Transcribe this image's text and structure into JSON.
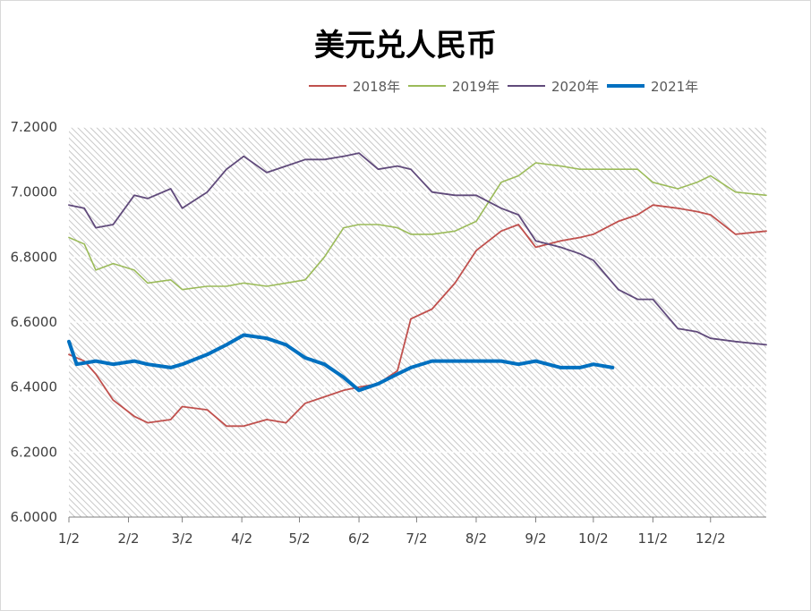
{
  "chart_data": {
    "type": "line",
    "title": "美元兑人民币",
    "xlabel": "",
    "ylabel": "",
    "ylim": [
      6.0,
      7.2
    ],
    "yticks": [
      "6.0000",
      "6.2000",
      "6.4000",
      "6.6000",
      "6.8000",
      "7.0000",
      "7.2000"
    ],
    "xticks": [
      "1/2",
      "2/2",
      "3/2",
      "4/2",
      "5/2",
      "6/2",
      "7/2",
      "8/2",
      "9/2",
      "10/2",
      "11/2",
      "12/2"
    ],
    "xrange": [
      "1/2",
      "12/31"
    ],
    "grid": true,
    "legend_position": "top-right",
    "series": [
      {
        "name": "2018年",
        "color": "#c0504d",
        "width": 1.8,
        "points": [
          [
            "1/2",
            6.5
          ],
          [
            "1/10",
            6.48
          ],
          [
            "1/16",
            6.44
          ],
          [
            "1/25",
            6.36
          ],
          [
            "2/5",
            6.31
          ],
          [
            "2/12",
            6.29
          ],
          [
            "2/24",
            6.3
          ],
          [
            "3/2",
            6.34
          ],
          [
            "3/15",
            6.33
          ],
          [
            "3/25",
            6.28
          ],
          [
            "4/3",
            6.28
          ],
          [
            "4/15",
            6.3
          ],
          [
            "4/25",
            6.29
          ],
          [
            "5/5",
            6.35
          ],
          [
            "5/15",
            6.37
          ],
          [
            "5/25",
            6.39
          ],
          [
            "6/2",
            6.4
          ],
          [
            "6/12",
            6.41
          ],
          [
            "6/22",
            6.45
          ],
          [
            "6/29",
            6.61
          ],
          [
            "7/10",
            6.64
          ],
          [
            "7/22",
            6.72
          ],
          [
            "8/2",
            6.82
          ],
          [
            "8/15",
            6.88
          ],
          [
            "8/24",
            6.9
          ],
          [
            "9/2",
            6.83
          ],
          [
            "9/15",
            6.85
          ],
          [
            "9/25",
            6.86
          ],
          [
            "10/2",
            6.87
          ],
          [
            "10/15",
            6.91
          ],
          [
            "10/25",
            6.93
          ],
          [
            "11/2",
            6.96
          ],
          [
            "11/15",
            6.95
          ],
          [
            "11/25",
            6.94
          ],
          [
            "12/2",
            6.93
          ],
          [
            "12/15",
            6.87
          ],
          [
            "12/31",
            6.88
          ]
        ]
      },
      {
        "name": "2019年",
        "color": "#9bbb59",
        "width": 1.6,
        "points": [
          [
            "1/2",
            6.86
          ],
          [
            "1/10",
            6.84
          ],
          [
            "1/16",
            6.76
          ],
          [
            "1/25",
            6.78
          ],
          [
            "2/5",
            6.76
          ],
          [
            "2/12",
            6.72
          ],
          [
            "2/24",
            6.73
          ],
          [
            "3/2",
            6.7
          ],
          [
            "3/15",
            6.71
          ],
          [
            "3/25",
            6.71
          ],
          [
            "4/3",
            6.72
          ],
          [
            "4/15",
            6.71
          ],
          [
            "4/25",
            6.72
          ],
          [
            "5/5",
            6.73
          ],
          [
            "5/15",
            6.8
          ],
          [
            "5/25",
            6.89
          ],
          [
            "6/2",
            6.9
          ],
          [
            "6/12",
            6.9
          ],
          [
            "6/22",
            6.89
          ],
          [
            "6/29",
            6.87
          ],
          [
            "7/10",
            6.87
          ],
          [
            "7/22",
            6.88
          ],
          [
            "8/2",
            6.91
          ],
          [
            "8/15",
            7.03
          ],
          [
            "8/24",
            7.05
          ],
          [
            "9/2",
            7.09
          ],
          [
            "9/15",
            7.08
          ],
          [
            "9/25",
            7.07
          ],
          [
            "10/2",
            7.07
          ],
          [
            "10/15",
            7.07
          ],
          [
            "10/25",
            7.07
          ],
          [
            "11/2",
            7.03
          ],
          [
            "11/15",
            7.01
          ],
          [
            "11/25",
            7.03
          ],
          [
            "12/2",
            7.05
          ],
          [
            "12/15",
            7.0
          ],
          [
            "12/31",
            6.99
          ]
        ]
      },
      {
        "name": "2020年",
        "color": "#604a7b",
        "width": 1.8,
        "points": [
          [
            "1/2",
            6.96
          ],
          [
            "1/10",
            6.95
          ],
          [
            "1/16",
            6.89
          ],
          [
            "1/25",
            6.9
          ],
          [
            "2/5",
            6.99
          ],
          [
            "2/12",
            6.98
          ],
          [
            "2/24",
            7.01
          ],
          [
            "3/2",
            6.95
          ],
          [
            "3/15",
            7.0
          ],
          [
            "3/25",
            7.07
          ],
          [
            "4/3",
            7.11
          ],
          [
            "4/15",
            7.06
          ],
          [
            "4/25",
            7.08
          ],
          [
            "5/5",
            7.1
          ],
          [
            "5/15",
            7.1
          ],
          [
            "5/25",
            7.11
          ],
          [
            "6/2",
            7.12
          ],
          [
            "6/12",
            7.07
          ],
          [
            "6/22",
            7.08
          ],
          [
            "6/29",
            7.07
          ],
          [
            "7/10",
            7.0
          ],
          [
            "7/22",
            6.99
          ],
          [
            "8/2",
            6.99
          ],
          [
            "8/15",
            6.95
          ],
          [
            "8/24",
            6.93
          ],
          [
            "9/2",
            6.85
          ],
          [
            "9/15",
            6.83
          ],
          [
            "9/25",
            6.81
          ],
          [
            "10/2",
            6.79
          ],
          [
            "10/15",
            6.7
          ],
          [
            "10/25",
            6.67
          ],
          [
            "11/2",
            6.67
          ],
          [
            "11/15",
            6.58
          ],
          [
            "11/25",
            6.57
          ],
          [
            "12/2",
            6.55
          ],
          [
            "12/15",
            6.54
          ],
          [
            "12/31",
            6.53
          ]
        ]
      },
      {
        "name": "2021年",
        "color": "#0070c0",
        "width": 4,
        "points": [
          [
            "1/2",
            6.54
          ],
          [
            "1/6",
            6.47
          ],
          [
            "1/16",
            6.48
          ],
          [
            "1/25",
            6.47
          ],
          [
            "2/5",
            6.48
          ],
          [
            "2/12",
            6.47
          ],
          [
            "2/24",
            6.46
          ],
          [
            "3/2",
            6.47
          ],
          [
            "3/15",
            6.5
          ],
          [
            "3/25",
            6.53
          ],
          [
            "4/3",
            6.56
          ],
          [
            "4/15",
            6.55
          ],
          [
            "4/25",
            6.53
          ],
          [
            "5/5",
            6.49
          ],
          [
            "5/15",
            6.47
          ],
          [
            "5/25",
            6.43
          ],
          [
            "6/2",
            6.39
          ],
          [
            "6/12",
            6.41
          ],
          [
            "6/22",
            6.44
          ],
          [
            "6/29",
            6.46
          ],
          [
            "7/10",
            6.48
          ],
          [
            "7/22",
            6.48
          ],
          [
            "8/2",
            6.48
          ],
          [
            "8/15",
            6.48
          ],
          [
            "8/24",
            6.47
          ],
          [
            "9/2",
            6.48
          ],
          [
            "9/15",
            6.46
          ],
          [
            "9/25",
            6.46
          ],
          [
            "10/2",
            6.47
          ],
          [
            "10/12",
            6.46
          ]
        ]
      }
    ]
  }
}
